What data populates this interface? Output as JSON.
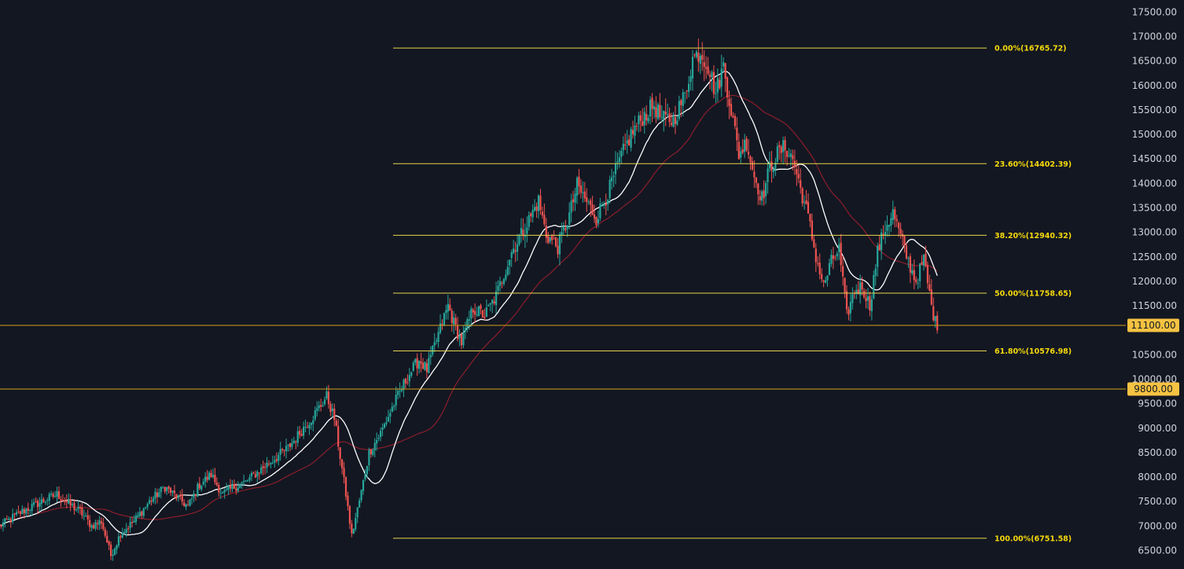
{
  "colors": {
    "background": "#131722",
    "axis_text": "#d1d4dc",
    "candle_up": "#26a69a",
    "candle_down": "#ef5350",
    "fib_line": "#e8d44d",
    "fib_label": "#f5d90a",
    "horizontal_line": "#d4a017",
    "price_tag": "#f5c242",
    "fast_ma": "#ffffff",
    "slow_ma": "#8b1e2a"
  },
  "chart_data": {
    "type": "candlestick",
    "y_axis": {
      "position": "right",
      "range": [
        6350,
        17600
      ],
      "ticks": [
        "17500.00",
        "17000.00",
        "16500.00",
        "16000.00",
        "15500.00",
        "15000.00",
        "14500.00",
        "14000.00",
        "13500.00",
        "13000.00",
        "12500.00",
        "12000.00",
        "11500.00",
        "11000.00",
        "10500.00",
        "10000.00",
        "9500.00",
        "9000.00",
        "8500.00",
        "8000.00",
        "7500.00",
        "7000.00",
        "6500.00"
      ]
    },
    "grid": false,
    "fibonacci": [
      {
        "label": "0.00%(16765.72)",
        "value": 16765.72
      },
      {
        "label": "23.60%(14402.39)",
        "value": 14402.39
      },
      {
        "label": "38.20%(12940.32)",
        "value": 12940.32
      },
      {
        "label": "50.00%(11758.65)",
        "value": 11758.65
      },
      {
        "label": "61.80%(10576.98)",
        "value": 10576.98
      },
      {
        "label": "100.00%(6751.58)",
        "value": 6751.58
      }
    ],
    "horizontal_levels": [
      {
        "label": "11100.00",
        "value": 11100
      },
      {
        "label": "9800.00",
        "value": 9800
      }
    ],
    "price_waypoints": [
      [
        0,
        7000
      ],
      [
        12,
        7300
      ],
      [
        22,
        7500
      ],
      [
        30,
        7650
      ],
      [
        36,
        7450
      ],
      [
        42,
        7300
      ],
      [
        48,
        7000
      ],
      [
        53,
        7100
      ],
      [
        58,
        6400
      ],
      [
        63,
        6850
      ],
      [
        70,
        7100
      ],
      [
        78,
        7500
      ],
      [
        86,
        7800
      ],
      [
        92,
        7600
      ],
      [
        98,
        7400
      ],
      [
        104,
        7850
      ],
      [
        110,
        8050
      ],
      [
        116,
        7650
      ],
      [
        122,
        7800
      ],
      [
        128,
        7900
      ],
      [
        134,
        8100
      ],
      [
        142,
        8350
      ],
      [
        150,
        8600
      ],
      [
        158,
        9000
      ],
      [
        164,
        9300
      ],
      [
        170,
        9650
      ],
      [
        174,
        9200
      ],
      [
        180,
        7650
      ],
      [
        183,
        6800
      ],
      [
        188,
        7700
      ],
      [
        192,
        8500
      ],
      [
        198,
        8900
      ],
      [
        205,
        9500
      ],
      [
        212,
        10050
      ],
      [
        218,
        10400
      ],
      [
        222,
        10200
      ],
      [
        227,
        10800
      ],
      [
        233,
        11500
      ],
      [
        236,
        11150
      ],
      [
        240,
        10750
      ],
      [
        246,
        11450
      ],
      [
        252,
        11300
      ],
      [
        258,
        11700
      ],
      [
        266,
        12600
      ],
      [
        273,
        13100
      ],
      [
        280,
        13650
      ],
      [
        284,
        12950
      ],
      [
        290,
        12700
      ],
      [
        296,
        13350
      ],
      [
        300,
        13950
      ],
      [
        306,
        13550
      ],
      [
        310,
        13300
      ],
      [
        316,
        13800
      ],
      [
        322,
        14450
      ],
      [
        328,
        15000
      ],
      [
        334,
        15350
      ],
      [
        340,
        15600
      ],
      [
        344,
        15300
      ],
      [
        350,
        15300
      ],
      [
        356,
        15800
      ],
      [
        360,
        16550
      ],
      [
        364,
        16700
      ],
      [
        368,
        16400
      ],
      [
        372,
        15850
      ],
      [
        376,
        16400
      ],
      [
        380,
        15500
      ],
      [
        384,
        14600
      ],
      [
        388,
        14850
      ],
      [
        392,
        14150
      ],
      [
        396,
        13700
      ],
      [
        400,
        14300
      ],
      [
        404,
        14600
      ],
      [
        408,
        14750
      ],
      [
        412,
        14500
      ],
      [
        416,
        13900
      ],
      [
        420,
        13300
      ],
      [
        424,
        12500
      ],
      [
        428,
        11900
      ],
      [
        432,
        12400
      ],
      [
        436,
        12650
      ],
      [
        440,
        11300
      ],
      [
        444,
        11800
      ],
      [
        448,
        11900
      ],
      [
        452,
        11500
      ],
      [
        456,
        12600
      ],
      [
        460,
        13100
      ],
      [
        464,
        13400
      ],
      [
        468,
        12900
      ],
      [
        472,
        12400
      ],
      [
        476,
        12000
      ],
      [
        480,
        12450
      ],
      [
        484,
        11500
      ],
      [
        487,
        11000
      ]
    ],
    "fast_ma_window": 20,
    "slow_ma_window": 50
  }
}
